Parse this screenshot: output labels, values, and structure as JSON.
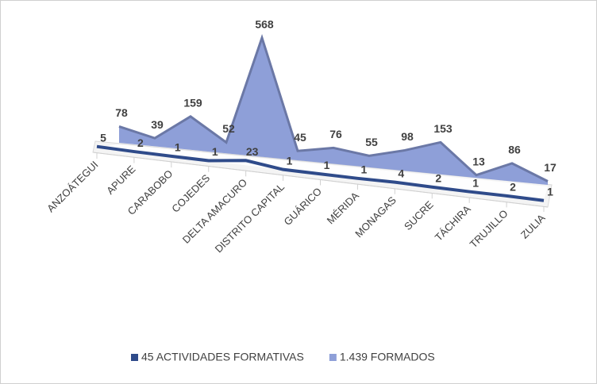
{
  "chart_data": {
    "type": "area3d",
    "categories": [
      "ANZOÁTEGUI",
      "APURE",
      "CARABOBO",
      "COJEDES",
      "DELTA AMACURO",
      "DISTRITO CAPITAL",
      "GUÁRICO",
      "MÉRIDA",
      "MONAGAS",
      "SUCRE",
      "TÁCHIRA",
      "TRUJILLO",
      "ZULIA"
    ],
    "series": [
      {
        "name": "45 ACTIVIDADES FORMATIVAS",
        "color": "#2f4b8a",
        "values": [
          5,
          2,
          1,
          1,
          23,
          1,
          1,
          1,
          4,
          2,
          1,
          2,
          1
        ]
      },
      {
        "name": "1.439 FORMADOS",
        "color": "#8e9fd8",
        "values": [
          78,
          39,
          159,
          52,
          568,
          45,
          76,
          55,
          98,
          153,
          13,
          86,
          17
        ]
      }
    ],
    "legend": "bottom"
  }
}
